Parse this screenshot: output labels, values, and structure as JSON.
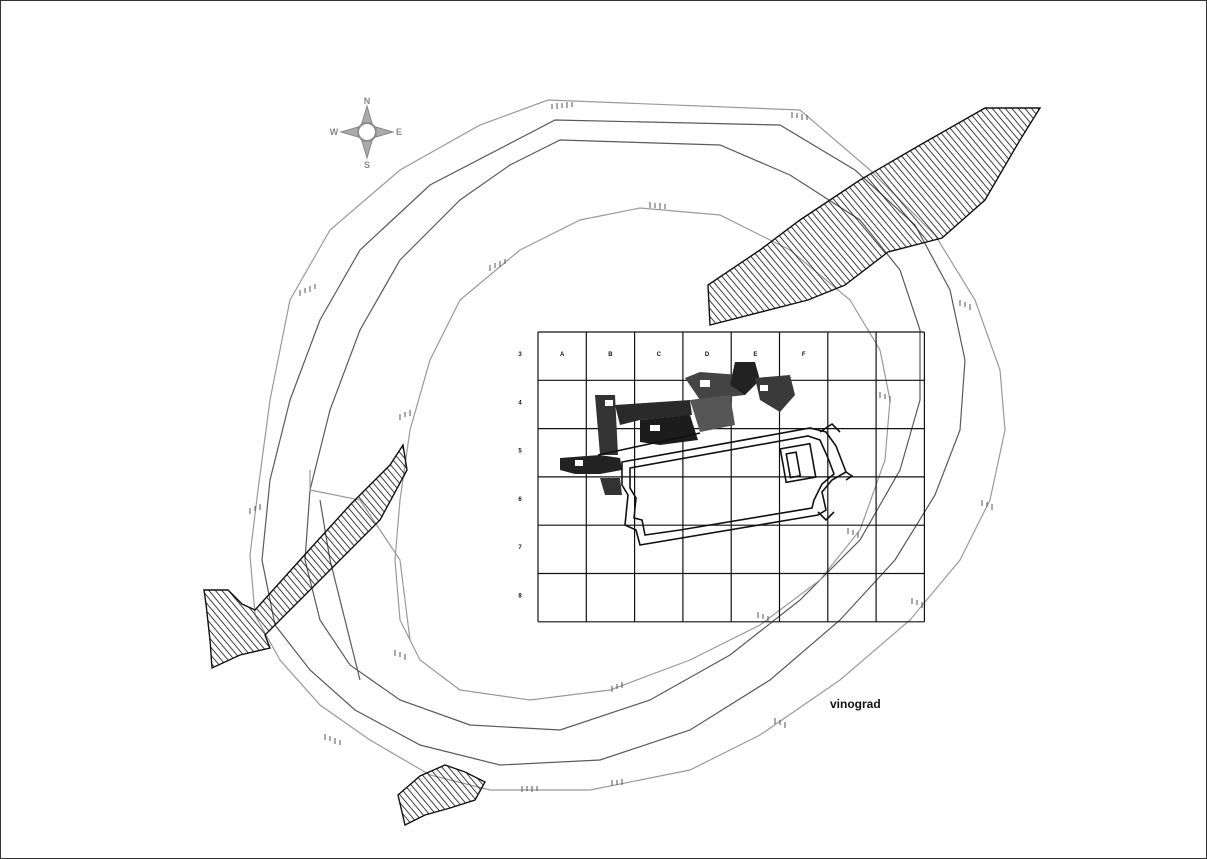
{
  "compass": {
    "north": "N",
    "south": "S",
    "west": "W",
    "east": "E"
  },
  "annotation": {
    "text": "vinograd"
  },
  "grid": {
    "columns": [
      "A",
      "B",
      "C",
      "D",
      "E",
      "F",
      "",
      ""
    ],
    "rows": [
      "3",
      "4",
      "5",
      "6",
      "7",
      "8"
    ]
  },
  "colors": {
    "ink": "#111111",
    "contour": "#9a9a9a"
  }
}
